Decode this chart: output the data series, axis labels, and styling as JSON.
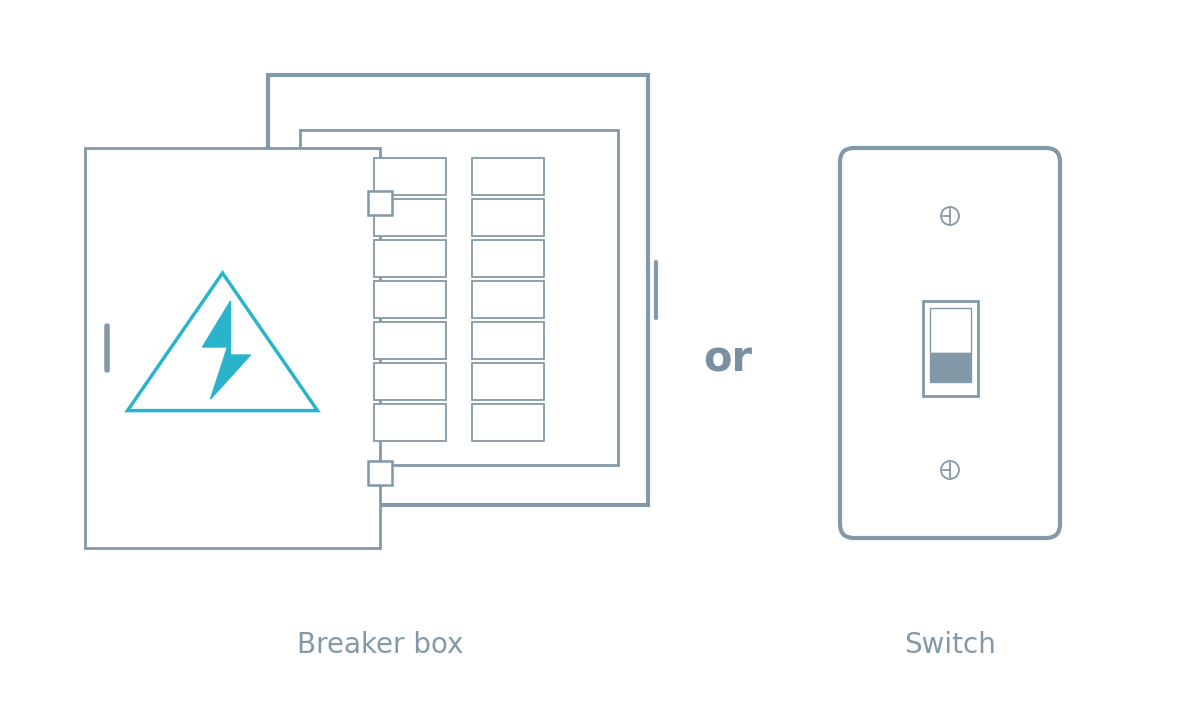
{
  "bg_color": "#ffffff",
  "outline_color": "#8499a8",
  "blue_color": "#2ab4cc",
  "gray_text_color": "#8499a8",
  "or_text_color": "#7a8fa0",
  "label_fontsize": 20,
  "or_fontsize": 30,
  "breaker_label": "Breaker box",
  "switch_label": "Switch",
  "or_label": "or"
}
